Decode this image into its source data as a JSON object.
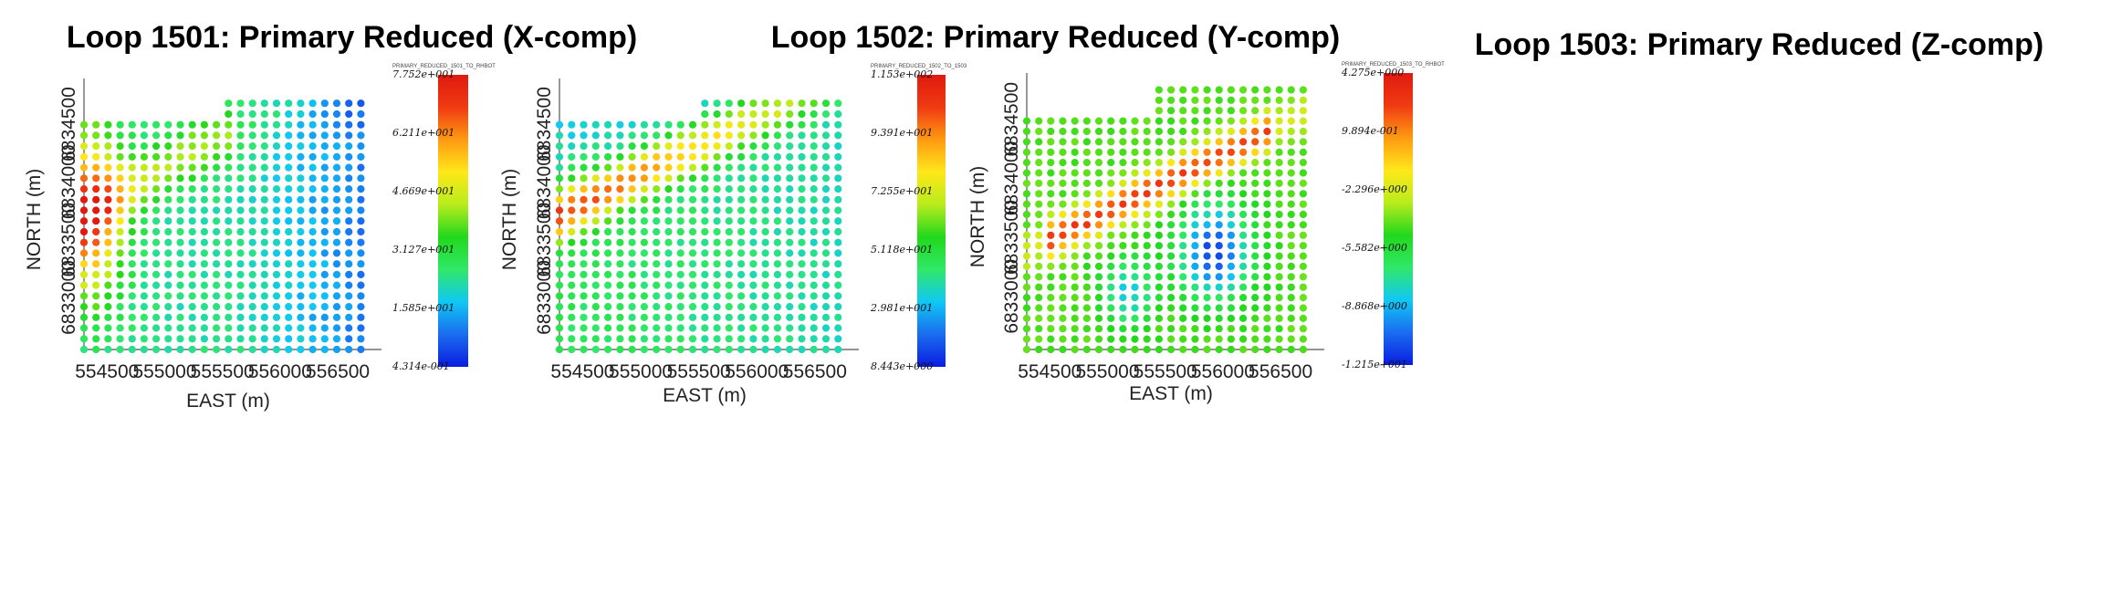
{
  "chart_data": [
    {
      "type": "scatter",
      "title": "Loop 1501: Primary Reduced (X-comp)",
      "xlabel": "EAST (m)",
      "ylabel": "NORTH (m)",
      "xticks": [
        "554500",
        "555000",
        "555500",
        "556000",
        "556500"
      ],
      "yticks": [
        "6833000",
        "6833500",
        "6834000",
        "6834500"
      ],
      "xlim": [
        554300,
        556800
      ],
      "ylim": [
        6832550,
        6834800
      ],
      "colorbar": {
        "header": "PRIMARY_REDUCED_1501_TO_RHBOT",
        "labels": [
          "7.752e+001",
          "6.211e+001",
          "4.669e+001",
          "3.127e+001",
          "1.585e+001",
          "4.314e-001"
        ],
        "min": 0.4314,
        "max": 77.52,
        "colors": [
          "#0a1de0",
          "#1a6cf0",
          "#10c8f4",
          "#30e868",
          "#22d81c",
          "#b8ec1c",
          "#ffe81a",
          "#ff9a12",
          "#f03a12",
          "#e01a10"
        ]
      },
      "grid": {
        "columns": 24,
        "x_start": 554300,
        "x_step": 104.35,
        "rows": 24,
        "y_bottom": 6832550,
        "y_step": 92.6,
        "notes": "values estimated from color; high values along the western and central-diagonal region, low in the east"
      }
    },
    {
      "type": "scatter",
      "title": "Loop 1502: Primary Reduced (Y-comp)",
      "xlabel": "EAST (m)",
      "ylabel": "NORTH (m)",
      "xticks": [
        "554500",
        "555000",
        "555500",
        "556000",
        "556500"
      ],
      "yticks": [
        "6833000",
        "6833500",
        "6834000",
        "6834500"
      ],
      "xlim": [
        554300,
        556800
      ],
      "ylim": [
        6832550,
        6834800
      ],
      "colorbar": {
        "header": "PRIMARY_REDUCED_1502_TO_1503",
        "labels": [
          "1.153e+002",
          "9.391e+001",
          "7.255e+001",
          "5.118e+001",
          "2.981e+001",
          "8.443e+000"
        ],
        "min": 8.443,
        "max": 115.3,
        "colors": [
          "#0a1de0",
          "#1a6cf0",
          "#10c8f4",
          "#30e868",
          "#22d81c",
          "#b8ec1c",
          "#ffe81a",
          "#ff9a12",
          "#f03a12",
          "#e01a10"
        ]
      },
      "grid": {
        "columns": 24,
        "x_start": 554300,
        "x_step": 104.35,
        "rows": 24,
        "y_bottom": 6832550,
        "y_step": 92.6,
        "notes": "values estimated from color; high band along a NW diagonal, cyan toward NE"
      }
    },
    {
      "type": "scatter",
      "title": "Loop 1503: Primary Reduced (Z-comp)",
      "xlabel": "EAST (m)",
      "ylabel": "NORTH (m)",
      "xticks": [
        "554500",
        "555000",
        "555500",
        "556000",
        "556500"
      ],
      "yticks": [
        "6833000",
        "6833500",
        "6834000",
        "6834500"
      ],
      "xlim": [
        554300,
        556800
      ],
      "ylim": [
        6832550,
        6834800
      ],
      "colorbar": {
        "header": "PRIMARY_REDUCED_1503_TO_RHBOT",
        "labels": [
          "4.275e+000",
          "9.894e-001",
          "-2.296e+000",
          "-5.582e+000",
          "-8.868e+000",
          "-1.215e+001"
        ],
        "min": -12.15,
        "max": 4.275,
        "colors": [
          "#0a1de0",
          "#1a6cf0",
          "#10c8f4",
          "#30e868",
          "#22d81c",
          "#b8ec1c",
          "#ffe81a",
          "#ff9a12",
          "#f03a12",
          "#e01a10"
        ]
      },
      "grid": {
        "columns": 25,
        "x_start": 554300,
        "x_step": 104.2,
        "rows": 26,
        "y_bottom": 6832550,
        "y_step": 88,
        "notes": "mostly green background; red/yellow band along a NE diagonal, blue anomaly below it"
      }
    }
  ]
}
